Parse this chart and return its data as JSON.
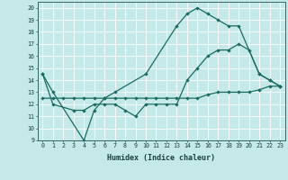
{
  "xlabel": "Humidex (Indice chaleur)",
  "bg_color": "#c5e8e8",
  "grid_color": "#ffffff",
  "line_color": "#1a6b62",
  "line1_x": [
    0,
    1,
    4,
    5,
    6,
    7,
    10,
    13,
    14,
    15,
    16,
    17,
    18,
    19,
    21,
    22,
    23
  ],
  "line1_y": [
    14.5,
    13,
    9,
    11.5,
    12.5,
    13,
    14.5,
    18.5,
    19.5,
    20,
    19.5,
    19,
    18.5,
    18.5,
    14.5,
    14,
    13.5
  ],
  "line2_x": [
    0,
    1,
    3,
    4,
    5,
    6,
    7,
    8,
    9,
    10,
    11,
    12,
    13,
    14,
    15,
    16,
    17,
    18,
    19,
    20,
    21,
    22,
    23
  ],
  "line2_y": [
    14.5,
    12,
    11.5,
    11.5,
    12,
    12,
    12,
    11.5,
    11,
    12,
    12,
    12,
    12,
    14,
    15,
    16,
    16.5,
    16.5,
    17,
    16.5,
    14.5,
    14,
    13.5
  ],
  "line3_x": [
    0,
    1,
    2,
    3,
    4,
    5,
    6,
    7,
    8,
    9,
    10,
    11,
    12,
    13,
    14,
    15,
    16,
    17,
    18,
    19,
    20,
    21,
    22,
    23
  ],
  "line3_y": [
    12.5,
    12.5,
    12.5,
    12.5,
    12.5,
    12.5,
    12.5,
    12.5,
    12.5,
    12.5,
    12.5,
    12.5,
    12.5,
    12.5,
    12.5,
    12.5,
    12.8,
    13.0,
    13.0,
    13.0,
    13.0,
    13.2,
    13.5,
    13.5
  ],
  "xlim": [
    -0.5,
    23.5
  ],
  "ylim": [
    9,
    20.5
  ],
  "yticks": [
    9,
    10,
    11,
    12,
    13,
    14,
    15,
    16,
    17,
    18,
    19,
    20
  ],
  "xticks": [
    0,
    1,
    2,
    3,
    4,
    5,
    6,
    7,
    8,
    9,
    10,
    11,
    12,
    13,
    14,
    15,
    16,
    17,
    18,
    19,
    20,
    21,
    22,
    23
  ],
  "xlabel_fontsize": 6.0,
  "tick_fontsize": 4.8
}
